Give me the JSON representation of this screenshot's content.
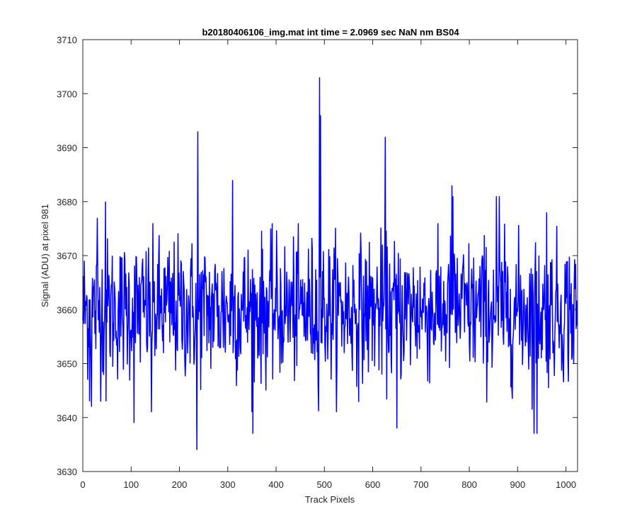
{
  "chart_data": {
    "type": "line",
    "title": "b20180406106_img.mat int time = 2.0969 sec  NaN nm BS04",
    "xlabel": "Track Pixels",
    "ylabel": "Signal (ADU) at pixel 981",
    "xlim": [
      0,
      1024
    ],
    "ylim": [
      3630,
      3710
    ],
    "xticks": [
      0,
      100,
      200,
      300,
      400,
      500,
      600,
      700,
      800,
      900,
      1000
    ],
    "yticks": [
      3630,
      3640,
      3650,
      3660,
      3670,
      3680,
      3690,
      3700,
      3710
    ],
    "grid": false,
    "box": true,
    "series": [
      {
        "color": "#0000ff",
        "baseline": 3660,
        "noise_amplitude": 6.5,
        "num_points": 1024,
        "notable_points": [
          {
            "x": 10,
            "y": 3647
          },
          {
            "x": 14,
            "y": 3643
          },
          {
            "x": 18,
            "y": 3642
          },
          {
            "x": 30,
            "y": 3677
          },
          {
            "x": 47,
            "y": 3680
          },
          {
            "x": 48,
            "y": 3643
          },
          {
            "x": 106,
            "y": 3639
          },
          {
            "x": 142,
            "y": 3641
          },
          {
            "x": 236,
            "y": 3634
          },
          {
            "x": 238,
            "y": 3693
          },
          {
            "x": 310,
            "y": 3684
          },
          {
            "x": 352,
            "y": 3637
          },
          {
            "x": 490,
            "y": 3703
          },
          {
            "x": 492,
            "y": 3696
          },
          {
            "x": 626,
            "y": 3692
          },
          {
            "x": 650,
            "y": 3638
          },
          {
            "x": 764,
            "y": 3683
          },
          {
            "x": 766,
            "y": 3681
          },
          {
            "x": 856,
            "y": 3681
          },
          {
            "x": 862,
            "y": 3681
          },
          {
            "x": 934,
            "y": 3637
          },
          {
            "x": 940,
            "y": 3637
          },
          {
            "x": 960,
            "y": 3678
          },
          {
            "x": 1016,
            "y": 3650
          }
        ]
      }
    ]
  }
}
